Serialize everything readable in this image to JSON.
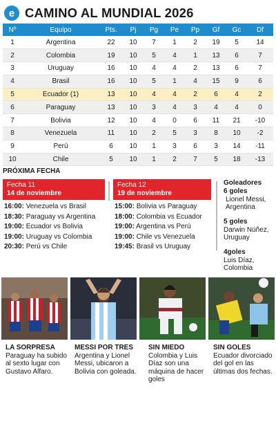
{
  "header": {
    "title": "CAMINO AL MUNDIAL 2026",
    "logo_letter": "e",
    "logo_icon": "publisher-logo-icon",
    "accent_color": "#1f8ccc"
  },
  "standings": {
    "columns": [
      "Nº",
      "Equipo",
      "Pts.",
      "Pj",
      "Pg",
      "Pe",
      "Pp",
      "Gf",
      "Gc",
      "Df"
    ],
    "rows": [
      [
        "1",
        "Argentina",
        "22",
        "10",
        "7",
        "1",
        "2",
        "19",
        "5",
        "14"
      ],
      [
        "2",
        "Colombia",
        "19",
        "10",
        "5",
        "4",
        "1",
        "13",
        "6",
        "7"
      ],
      [
        "3",
        "Uruguay",
        "16",
        "10",
        "4",
        "4",
        "2",
        "13",
        "6",
        "7"
      ],
      [
        "4",
        "Brasil",
        "16",
        "10",
        "5",
        "1",
        "4",
        "15",
        "9",
        "6"
      ],
      [
        "5",
        "Ecuador (1)",
        "13",
        "10",
        "4",
        "4",
        "2",
        "6",
        "4",
        "2"
      ],
      [
        "6",
        "Paraguay",
        "13",
        "10",
        "3",
        "4",
        "3",
        "4",
        "4",
        "0"
      ],
      [
        "7",
        "Bolivia",
        "12",
        "10",
        "4",
        "0",
        "6",
        "11",
        "21",
        "-10"
      ],
      [
        "8",
        "Venezuela",
        "11",
        "10",
        "2",
        "5",
        "3",
        "8",
        "10",
        "-2"
      ],
      [
        "9",
        "Perú",
        "6",
        "10",
        "1",
        "3",
        "6",
        "3",
        "14",
        "-11"
      ],
      [
        "10",
        "Chile",
        "5",
        "10",
        "1",
        "2",
        "7",
        "5",
        "18",
        "-13"
      ]
    ],
    "highlight_color": "#fbefc3"
  },
  "proxima": {
    "title": "PRÓXIMA FECHA",
    "accent_color": "#e1252b",
    "fecha11": {
      "label": "Fecha 11",
      "date": "14 de noviembre",
      "matches": [
        {
          "time": "16:00:",
          "teams": "Venezuela vs Brasil"
        },
        {
          "time": "18:30:",
          "teams": "Paraguay vs Argentina"
        },
        {
          "time": "19:00:",
          "teams": "Ecuador vs Bolivia"
        },
        {
          "time": "19:00:",
          "teams": "Uruguay vs Colombia"
        },
        {
          "time": "20:30:",
          "teams": "Perú vs Chile"
        }
      ]
    },
    "fecha12": {
      "label": "Fecha 12",
      "date": "19 de noviembre",
      "matches": [
        {
          "time": "15:00:",
          "teams": "Bolivia vs Paraguay"
        },
        {
          "time": "18:00:",
          "teams": "Colombia vs Ecuador"
        },
        {
          "time": "19:00:",
          "teams": "Argentina vs Perú"
        },
        {
          "time": "19:00:",
          "teams": "Chile vs Venezuela"
        },
        {
          "time": "19:45:",
          "teams": "Brasil vs Uruguay"
        }
      ]
    }
  },
  "goleadores": {
    "title": "Goleadores",
    "groups": [
      {
        "goals": "6 goles",
        "name": "Lionel Messi, Argentina"
      },
      {
        "goals": "5 goles",
        "name": "Darwin Núñez, Uruguay"
      },
      {
        "goals": "4goles",
        "name": "Luis Díaz, Colombia"
      }
    ]
  },
  "stories": [
    {
      "photo": "paraguay-players-photo",
      "headline": "LA SORPRESA",
      "text": "Paraguay ha subido al sexto lugar con Gustavo Alfaro."
    },
    {
      "photo": "messi-celebration-photo",
      "headline": "MESSI POR TRES",
      "text": "Argentina y Lionel Messi, ubicaron a Bolivia con goleada."
    },
    {
      "photo": "luis-diaz-photo",
      "headline": "SIN MIEDO",
      "text": "Colombia y Luis Díaz son una máquina de hacer goles"
    },
    {
      "photo": "ecuador-match-photo",
      "headline": "SIN GOLES",
      "text": "Ecuador divorciado del gol en las últimas dos fechas."
    }
  ]
}
